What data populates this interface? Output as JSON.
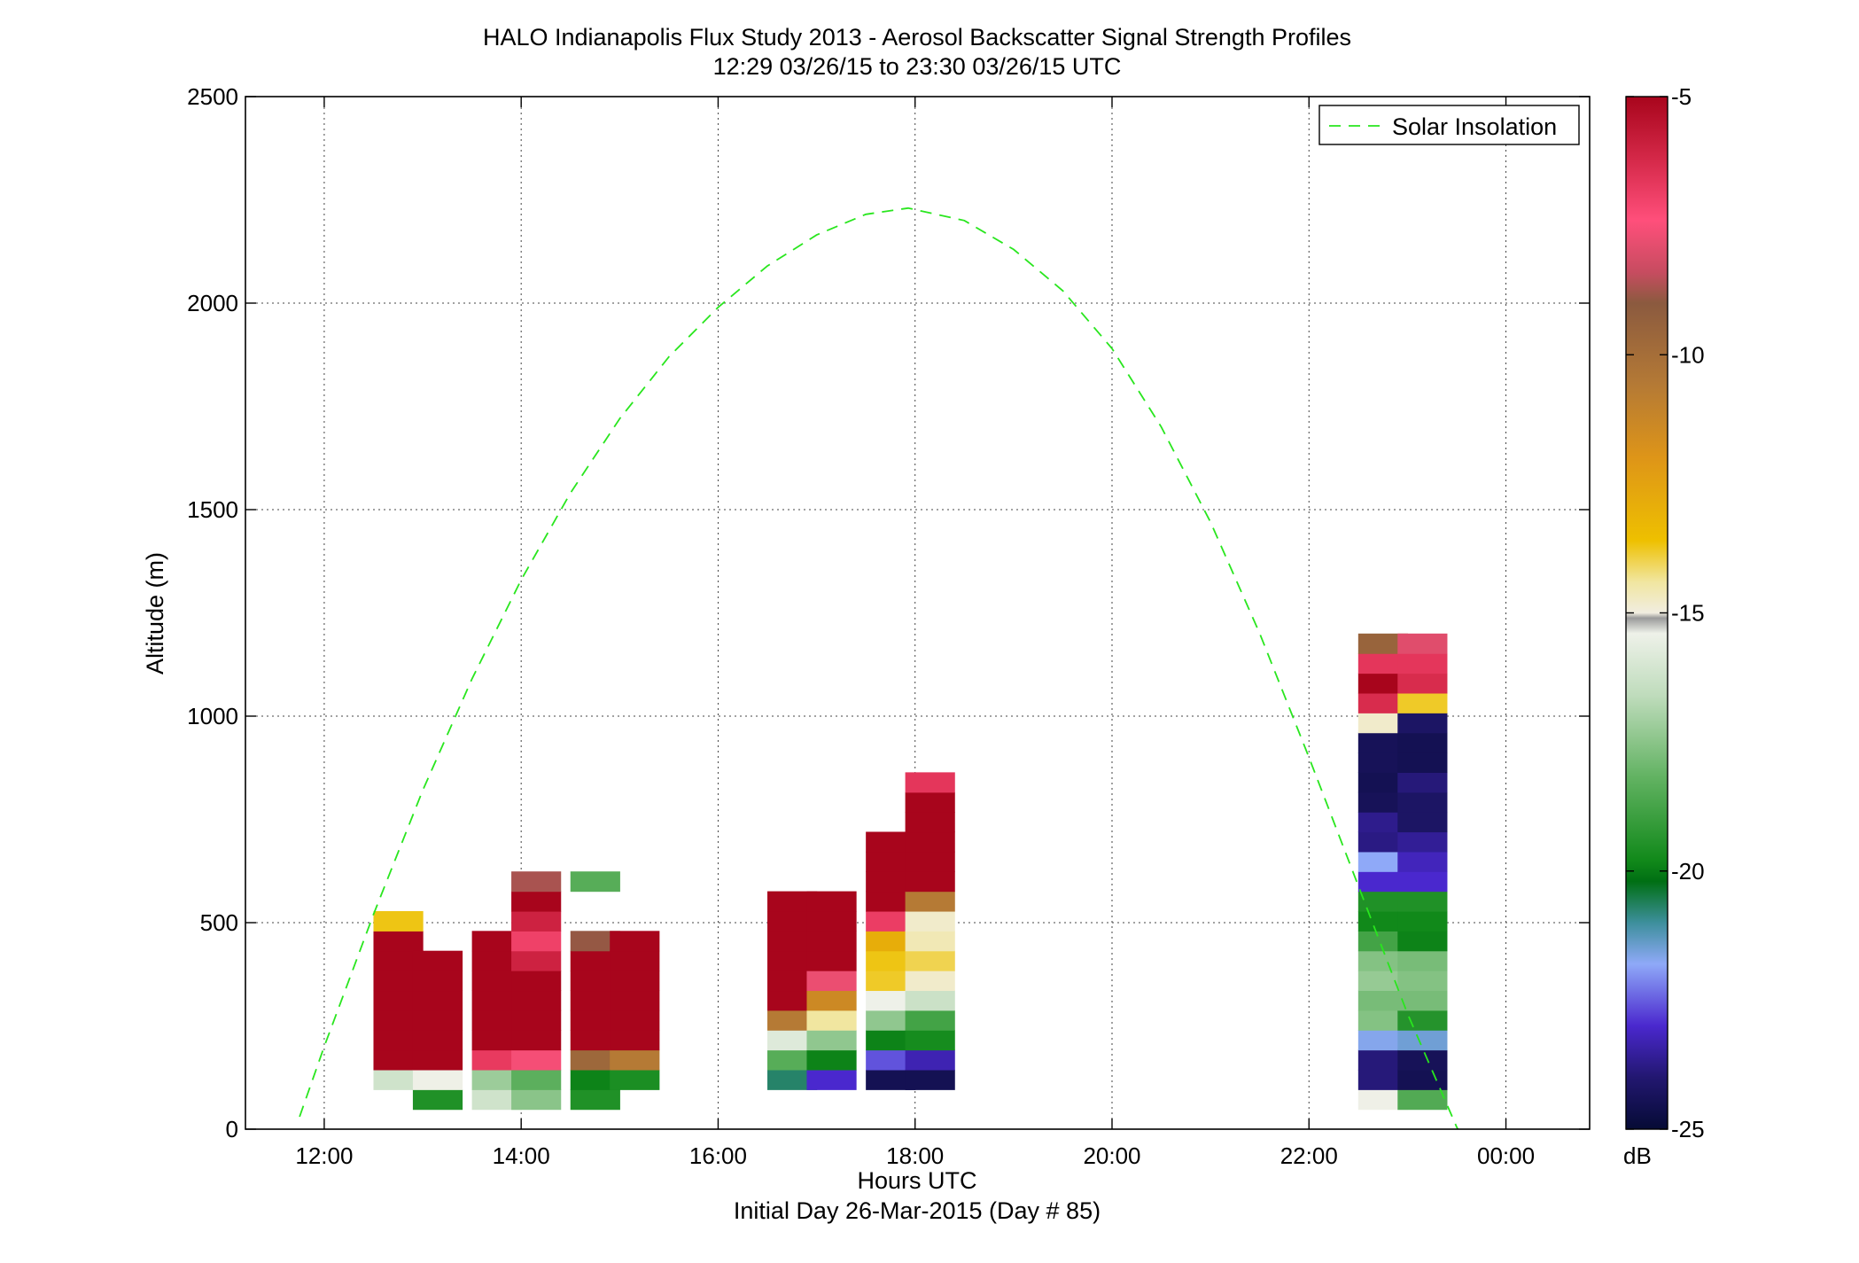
{
  "chart_data": {
    "type": "heatmap",
    "title": "HALO Indianapolis Flux Study 2013 - Aerosol Backscatter Signal Strength Profiles",
    "subtitle": "12:29 03/26/15 to 23:30 03/26/15  UTC",
    "xlabel": "Hours UTC",
    "xlabel2": "Initial Day 26-Mar-2015 (Day # 85)",
    "ylabel": "Altitude (m)",
    "xlim": [
      11.2,
      24.85
    ],
    "ylim": [
      0,
      2500
    ],
    "x_ticks": [
      12,
      14,
      16,
      18,
      20,
      22,
      24
    ],
    "x_tick_labels": [
      "12:00",
      "14:00",
      "16:00",
      "18:00",
      "20:00",
      "22:00",
      "00:00"
    ],
    "y_ticks": [
      0,
      500,
      1000,
      1500,
      2000,
      2500
    ],
    "y_tick_labels": [
      "0",
      "500",
      "1000",
      "1500",
      "2000",
      "2500"
    ],
    "grid": true,
    "legend": {
      "position": "top-right",
      "entries": [
        "Solar Insolation"
      ]
    },
    "colorbar": {
      "min": -25,
      "max": -5,
      "unit": "dB",
      "tick_values": [
        -5,
        -10,
        -15,
        -20,
        -25
      ],
      "tick_labels": [
        "-5",
        "-10",
        "-15",
        "-20",
        "-25"
      ]
    },
    "cell_width_hours": 0.5,
    "cell_height_m": 48,
    "columns": [
      {
        "t": 12.5,
        "z0": 48,
        "values": [
          null,
          -16.2,
          -5.0,
          -5.0,
          -5.0,
          -5.0,
          -5.0,
          -5.0,
          -5.0,
          -13.7
        ]
      },
      {
        "t": 12.9,
        "z0": 48,
        "values": [
          -19.5,
          -15.3,
          -5.0,
          -5.0,
          -5.0,
          -5.0,
          -5.0,
          -5.0
        ]
      },
      {
        "t": 13.5,
        "z0": 48,
        "values": [
          -16.2,
          -17.2,
          -6.7,
          -5.0,
          -5.0,
          -5.0,
          -5.0,
          -5.0,
          -5.0
        ]
      },
      {
        "t": 13.9,
        "z0": 48,
        "values": [
          -17.5,
          -18.3,
          -7.5,
          -5.0,
          -5.0,
          -5.0,
          -5.0,
          -6.0,
          -6.9,
          -6.0,
          -5.0,
          -8.7
        ]
      },
      {
        "t": 14.5,
        "z0": 48,
        "values": [
          -19.5,
          -19.9,
          -9.7,
          -5.0,
          -5.0,
          -5.0,
          -5.0,
          -5.0,
          -8.9,
          null,
          null,
          -18.4
        ]
      },
      {
        "t": 14.9,
        "z0": 96,
        "values": [
          -19.6,
          -10.6,
          -5.0,
          -5.0,
          -5.0,
          -5.0,
          -5.0,
          -5.0
        ]
      },
      {
        "t": 16.5,
        "z0": 96,
        "values": [
          -20.7,
          -18.4,
          -15.8,
          -10.6,
          -5.0,
          -5.0,
          -5.0,
          -5.0,
          -5.0,
          -5.0
        ]
      },
      {
        "t": 16.9,
        "z0": 96,
        "values": [
          -23.0,
          -19.9,
          -17.4,
          -14.4,
          -11.4,
          -7.7,
          -5.0,
          -5.0,
          -5.0,
          -5.0
        ]
      },
      {
        "t": 17.5,
        "z0": 96,
        "values": [
          -24.5,
          -22.6,
          -19.9,
          -17.4,
          -15.4,
          -13.8,
          -13.7,
          -12.9,
          -6.8,
          -5.0,
          -5.0,
          -5.0,
          -5.0
        ]
      },
      {
        "t": 17.9,
        "z0": 96,
        "values": [
          -24.5,
          -23.3,
          -19.7,
          -18.8,
          -16.3,
          -14.8,
          -14.0,
          -14.6,
          -14.8,
          -10.6,
          -5.0,
          -5.0,
          -5.0,
          -5.0,
          -5.0,
          -6.6
        ]
      },
      {
        "t": 22.5,
        "z0": 48,
        "values": [
          -15.3,
          -23.9,
          -23.9,
          -21.7,
          -17.6,
          -17.8,
          -17.3,
          -17.6,
          -18.8,
          -19.8,
          -19.5,
          -23.0,
          -21.8,
          -23.8,
          -23.7,
          -24.4,
          -24.5,
          -24.4,
          -24.4,
          -14.8,
          -6.3,
          -5.0,
          -6.6,
          -9.5
        ]
      },
      {
        "t": 22.9,
        "z0": 48,
        "values": [
          -18.5,
          -24.5,
          -24.4,
          -21.5,
          -19.4,
          -17.8,
          -17.6,
          -17.8,
          -19.9,
          -19.8,
          -19.5,
          -23.0,
          -23.2,
          -23.6,
          -24.2,
          -24.2,
          -23.9,
          -24.5,
          -24.5,
          -24.2,
          -13.8,
          -6.3,
          -6.6,
          -7.9
        ]
      }
    ],
    "solar_insolation": {
      "style": "dashed",
      "color": "#29e61e",
      "x": [
        11.75,
        12.0,
        12.5,
        13.0,
        13.5,
        14.0,
        14.5,
        15.0,
        15.5,
        16.0,
        16.5,
        17.0,
        17.5,
        17.93,
        18.5,
        19.0,
        19.5,
        20.0,
        20.5,
        21.0,
        21.5,
        22.0,
        22.5,
        23.0,
        23.5,
        23.95
      ],
      "y": [
        30,
        200,
        520,
        820,
        1090,
        1330,
        1540,
        1720,
        1870,
        1990,
        2090,
        2165,
        2215,
        2230,
        2200,
        2130,
        2030,
        1890,
        1700,
        1470,
        1200,
        900,
        590,
        280,
        5,
        -180
      ]
    }
  }
}
